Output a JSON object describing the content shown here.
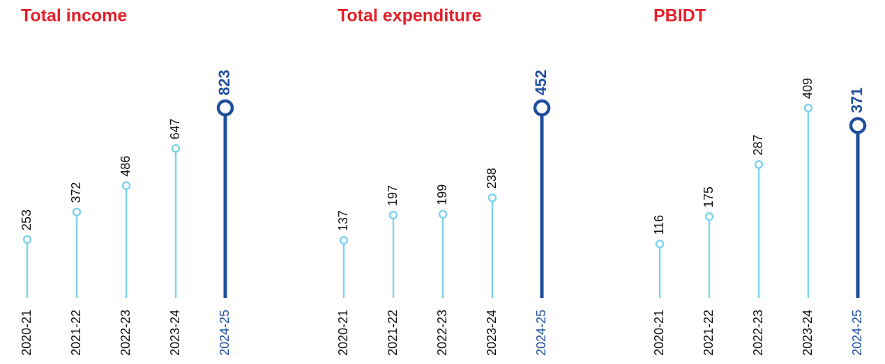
{
  "chart_data": [
    {
      "type": "lollipop",
      "title": "Total income",
      "categories": [
        "2020-21",
        "2021-22",
        "2022-23",
        "2023-24",
        "2024-25"
      ],
      "values": [
        253,
        372,
        486,
        647,
        823
      ],
      "color": "#7fd3f0",
      "highlight_color": "#1f4e9e",
      "title_color": "#e3202a"
    },
    {
      "type": "lollipop",
      "title": "Total expenditure",
      "categories": [
        "2020-21",
        "2021-22",
        "2022-23",
        "2023-24",
        "2024-25"
      ],
      "values": [
        137,
        197,
        199,
        238,
        452
      ],
      "color": "#7fd3f0",
      "highlight_color": "#1f4e9e",
      "title_color": "#e3202a"
    },
    {
      "type": "lollipop",
      "title": "PBIDT",
      "categories": [
        "2020-21",
        "2021-22",
        "2022-23",
        "2023-24",
        "2024-25"
      ],
      "values": [
        116,
        175,
        287,
        409,
        371
      ],
      "color": "#7fd3f0",
      "highlight_color": "#1f4e9e",
      "title_color": "#e3202a"
    }
  ]
}
